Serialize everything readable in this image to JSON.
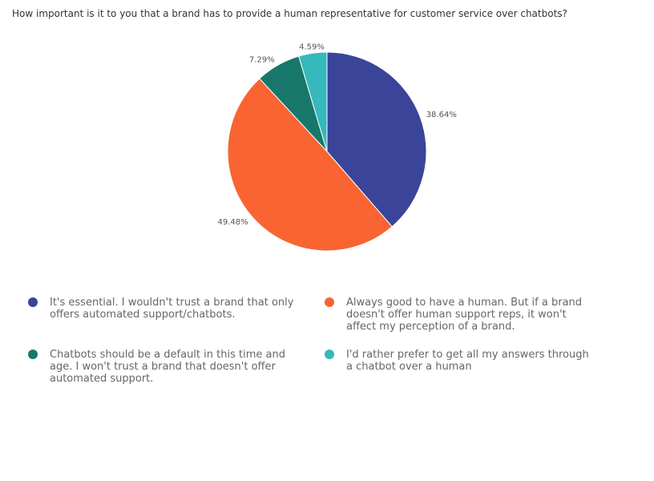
{
  "chart_data": {
    "type": "pie",
    "title": "How important is it to you that a brand has to provide a human representative for customer service over chatbots?",
    "slices": [
      {
        "name": "It's essential. I wouldn't trust a brand that only offers automated support/chatbots.",
        "value": 38.64,
        "label": "38.64%",
        "color": "#3a4499"
      },
      {
        "name": "Always good to have a human. But if a brand doesn't offer human support reps, it won't affect my perception of a brand.",
        "value": 49.48,
        "label": "49.48%",
        "color": "#f96432"
      },
      {
        "name": "Chatbots should be a default in this time and age. I won't trust a brand that doesn't offer automated support.",
        "value": 7.29,
        "label": "7.29%",
        "color": "#18776b"
      },
      {
        "name": "I'd rather prefer to get all my answers through a chatbot over a human",
        "value": 4.59,
        "label": "4.59%",
        "color": "#36b8bc"
      }
    ],
    "legend_position": "bottom"
  }
}
